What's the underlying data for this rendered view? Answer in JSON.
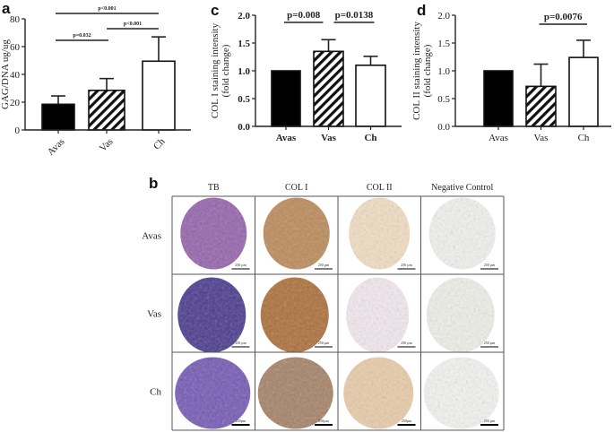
{
  "panel_labels": {
    "a": "a",
    "b": "b",
    "c": "c",
    "d": "d"
  },
  "chart_data": [
    {
      "panel": "a",
      "type": "bar",
      "categories": [
        "Avas",
        "Vas",
        "Ch"
      ],
      "values": [
        18.5,
        28.5,
        49.5
      ],
      "error_upper": [
        24.5,
        37,
        67
      ],
      "ylabel": "GAG/DNA ug/ug",
      "ylim": [
        0,
        80
      ],
      "yticks": [
        0,
        20,
        40,
        60,
        80
      ],
      "bar_fills": [
        "solid-black",
        "diagonal-hatch",
        "white"
      ],
      "x_labels_rotated": true,
      "significance": [
        {
          "from": "Avas",
          "to": "Ch",
          "label": "p<0.001"
        },
        {
          "from": "Vas",
          "to": "Ch",
          "label": "p<0.001"
        },
        {
          "from": "Avas",
          "to": "Vas",
          "label": "p=0.032"
        }
      ]
    },
    {
      "panel": "c",
      "type": "bar",
      "categories": [
        "Avas",
        "Vas",
        "Ch"
      ],
      "values": [
        1.0,
        1.35,
        1.1
      ],
      "error_upper": [
        null,
        1.56,
        1.26
      ],
      "ylabel": [
        "COL I staining intensity",
        "(fold change)"
      ],
      "ylim": [
        0,
        2.0
      ],
      "yticks": [
        "0.0",
        "0.5",
        "1.0",
        "1.5",
        "2.0"
      ],
      "bar_fills": [
        "solid-black",
        "diagonal-hatch",
        "white"
      ],
      "bold_ticks": true,
      "significance": [
        {
          "from": "Avas",
          "to": "Vas",
          "label": "p=0.008"
        },
        {
          "from": "Vas",
          "to": "Ch",
          "label": "p=0.0138"
        }
      ]
    },
    {
      "panel": "d",
      "type": "bar",
      "categories": [
        "Avas",
        "Vas",
        "Ch"
      ],
      "values": [
        1.0,
        0.72,
        1.24
      ],
      "error_upper": [
        null,
        1.12,
        1.55
      ],
      "ylabel": [
        "COL II staining intensity",
        "(fold change)"
      ],
      "ylim": [
        0,
        2.0
      ],
      "yticks": [
        "0.0",
        "0.5",
        "1.0",
        "1.5",
        "2.0"
      ],
      "bar_fills": [
        "solid-black",
        "diagonal-hatch",
        "white"
      ],
      "bold_ticks": false,
      "significance": [
        {
          "from": "Vas",
          "to": "Ch",
          "label": "p=0.0076"
        }
      ]
    }
  ],
  "micrographs": {
    "columns": [
      "TB",
      "COL I",
      "COL II",
      "Negative Control"
    ],
    "rows": [
      "Avas",
      "Vas",
      "Ch"
    ],
    "scale_bars": [
      [
        "250 µm",
        "250 µm",
        "250 µm",
        "250 µm"
      ],
      [
        "250 µm",
        "250 µm",
        "250 µm",
        "250 µm"
      ],
      [
        "250µm",
        "250µm",
        "250µm",
        "250 µm"
      ]
    ],
    "stain_colors": {
      "TB": [
        "#8e5aa6",
        "#3e2d86",
        "#6c4fb0"
      ],
      "COL I": [
        "#b8834f",
        "#a8662c",
        "#a07a5e"
      ],
      "COL II": [
        "#f1dcc0",
        "#f3e8ee",
        "#e8c9a3"
      ],
      "Negative Control": [
        "#f1f1ef",
        "#efefe9",
        "#f3f3f1"
      ]
    }
  }
}
